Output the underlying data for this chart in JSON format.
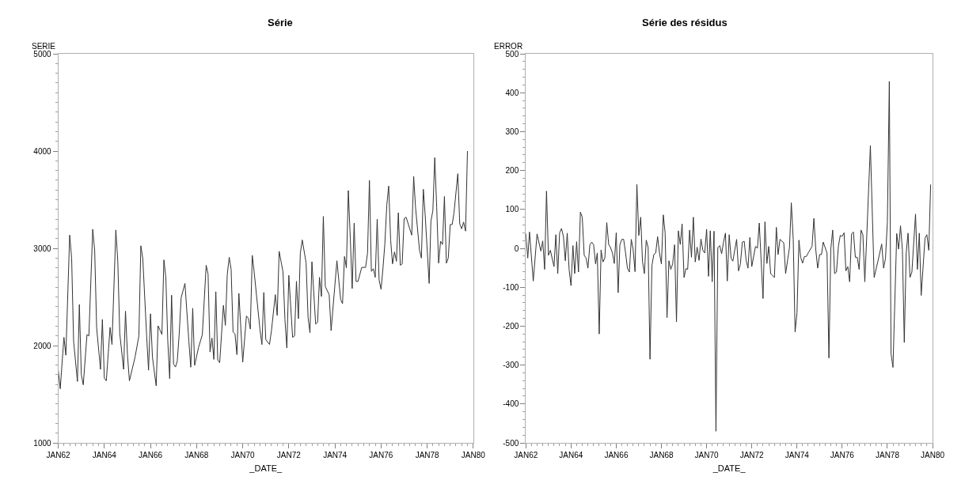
{
  "chart_data": [
    {
      "type": "line",
      "title": "Série",
      "xlabel": "_DATE_",
      "ylabel": "SERIE",
      "x": [
        "1962-01",
        "1962-02",
        "1962-04",
        "1962-05",
        "1962-07",
        "1962-08",
        "1962-09",
        "1962-11",
        "1962-12",
        "1963-01",
        "1963-02",
        "1963-04",
        "1963-05",
        "1963-07",
        "1963-08",
        "1963-09",
        "1963-11",
        "1963-12",
        "1964-01",
        "1964-02",
        "1964-04",
        "1964-05",
        "1964-07",
        "1964-08",
        "1964-09",
        "1964-11",
        "1964-12",
        "1965-01",
        "1965-02",
        "1965-05",
        "1965-07",
        "1965-08",
        "1965-09",
        "1965-11",
        "1965-12",
        "1966-01",
        "1966-02",
        "1966-04",
        "1966-05",
        "1966-07",
        "1966-08",
        "1966-09",
        "1966-10",
        "1966-11",
        "1966-12",
        "1967-01",
        "1967-02",
        "1967-03",
        "1967-04",
        "1967-05",
        "1967-07",
        "1967-09",
        "1967-10",
        "1967-11",
        "1967-12",
        "1968-02",
        "1968-04",
        "1968-06",
        "1968-07",
        "1968-08",
        "1968-09",
        "1968-10",
        "1968-11",
        "1968-12",
        "1969-01",
        "1969-03",
        "1969-04",
        "1969-05",
        "1969-06",
        "1969-07",
        "1969-08",
        "1969-09",
        "1969-10",
        "1969-11",
        "1970-01",
        "1970-03",
        "1970-04",
        "1970-05",
        "1970-06",
        "1970-07",
        "1970-10",
        "1970-11",
        "1970-12",
        "1971-01",
        "1971-03",
        "1971-04",
        "1971-06",
        "1971-07",
        "1971-08",
        "1971-10",
        "1971-11",
        "1971-12",
        "1972-01",
        "1972-03",
        "1972-04",
        "1972-05",
        "1972-06",
        "1972-07",
        "1972-08",
        "1972-10",
        "1972-11",
        "1972-12",
        "1973-01",
        "1973-03",
        "1973-04",
        "1973-05",
        "1973-06",
        "1973-07",
        "1973-08",
        "1973-10",
        "1973-11",
        "1974-02",
        "1974-04",
        "1974-05",
        "1974-06",
        "1974-07",
        "1974-08",
        "1974-09",
        "1974-10",
        "1974-11",
        "1974-12",
        "1975-01",
        "1975-03",
        "1975-05",
        "1975-06",
        "1975-07",
        "1975-08",
        "1975-09",
        "1975-10",
        "1975-11",
        "1975-12",
        "1976-01",
        "1976-02",
        "1976-03",
        "1976-04",
        "1976-05",
        "1976-06",
        "1976-07",
        "1976-08",
        "1976-09",
        "1976-10",
        "1976-11",
        "1976-12",
        "1977-01",
        "1977-02",
        "1977-05",
        "1977-06",
        "1977-07",
        "1977-09",
        "1977-10",
        "1977-11",
        "1977-12",
        "1978-02",
        "1978-03",
        "1978-04",
        "1978-05",
        "1978-06",
        "1978-07",
        "1978-08",
        "1978-09",
        "1978-10",
        "1978-11",
        "1978-12",
        "1979-01",
        "1979-02",
        "1979-03",
        "1979-05",
        "1979-06",
        "1979-07",
        "1979-08",
        "1979-09",
        "1979-10"
      ],
      "series": [
        {
          "color": "#333333",
          "values": [
            1747,
            1556,
            2085,
            1901,
            3136,
            2897,
            2044,
            1632,
            2422,
            1701,
            1597,
            2113,
            2100,
            3196,
            2977,
            2181,
            1756,
            2269,
            1665,
            1638,
            2187,
            2011,
            3188,
            2867,
            2126,
            1756,
            2354,
            1907,
            1638,
            1880,
            2099,
            3026,
            2894,
            2100,
            1747,
            2327,
            1880,
            1586,
            2203,
            2115,
            2881,
            2700,
            2060,
            1660,
            2518,
            1810,
            1780,
            1840,
            2120,
            2491,
            2639,
            2044,
            1778,
            2384,
            1797,
            1981,
            2113,
            2826,
            2735,
            1934,
            2077,
            1858,
            2554,
            1852,
            1825,
            2414,
            2208,
            2730,
            2908,
            2784,
            2140,
            2120,
            1907,
            2537,
            1830,
            2304,
            2280,
            2170,
            2928,
            2757,
            2167,
            2011,
            2546,
            2062,
            2012,
            2154,
            2524,
            2310,
            2969,
            2757,
            2263,
            1975,
            2722,
            2085,
            2100,
            2661,
            2277,
            2949,
            3086,
            2850,
            2291,
            2132,
            2862,
            2222,
            2240,
            2702,
            2505,
            3328,
            2606,
            2525,
            2154,
            2872,
            2475,
            2431,
            2916,
            2800,
            3594,
            3100,
            2587,
            3259,
            2660,
            2660,
            2804,
            2804,
            2950,
            3698,
            2763,
            2790,
            2702,
            3300,
            2675,
            2579,
            2798,
            3045,
            3443,
            3640,
            3086,
            2840,
            2963,
            2867,
            3366,
            2826,
            2840,
            3306,
            3320,
            3136,
            3739,
            3416,
            2982,
            2900,
            3607,
            3333,
            2639,
            3278,
            3388,
            3932,
            3416,
            2848,
            3072,
            3040,
            3533,
            2848,
            2900,
            3245,
            3245,
            3361,
            3767,
            3251,
            3201,
            3270,
            3177,
            4000
          ]
        }
      ],
      "xlim": [
        "1962-01",
        "1980-01"
      ],
      "xticks": [
        {
          "value": "1962-01",
          "label": "JAN62"
        },
        {
          "value": "1964-01",
          "label": "JAN64"
        },
        {
          "value": "1966-01",
          "label": "JAN66"
        },
        {
          "value": "1968-01",
          "label": "JAN68"
        },
        {
          "value": "1970-01",
          "label": "JAN70"
        },
        {
          "value": "1972-01",
          "label": "JAN72"
        },
        {
          "value": "1974-01",
          "label": "JAN74"
        },
        {
          "value": "1976-01",
          "label": "JAN76"
        },
        {
          "value": "1978-01",
          "label": "JAN78"
        },
        {
          "value": "1980-01",
          "label": "JAN80"
        }
      ],
      "ylim": [
        1000,
        5000
      ],
      "yticks": [
        1000,
        2000,
        3000,
        4000,
        5000
      ],
      "marker": "none",
      "line_style": "solid"
    },
    {
      "type": "line",
      "title": "Série des résidus",
      "xlabel": "_DATE_",
      "ylabel": "ERROR",
      "x": [
        "1962-01",
        "1962-02",
        "1962-03",
        "1962-05",
        "1962-07",
        "1962-09",
        "1962-10",
        "1962-11",
        "1962-12",
        "1963-01",
        "1963-02",
        "1963-04",
        "1963-05",
        "1963-06",
        "1963-07",
        "1963-08",
        "1963-09",
        "1963-10",
        "1963-11",
        "1963-12",
        "1964-01",
        "1964-02",
        "1964-03",
        "1964-04",
        "1964-05",
        "1964-06",
        "1964-07",
        "1964-08",
        "1964-09",
        "1964-10",
        "1964-11",
        "1964-12",
        "1965-01",
        "1965-02",
        "1965-03",
        "1965-04",
        "1965-05",
        "1965-06",
        "1965-07",
        "1965-08",
        "1965-09",
        "1965-10",
        "1965-11",
        "1965-12",
        "1966-01",
        "1966-02",
        "1966-03",
        "1966-04",
        "1966-05",
        "1966-06",
        "1966-07",
        "1966-08",
        "1966-09",
        "1966-10",
        "1966-11",
        "1966-12",
        "1967-01",
        "1967-02",
        "1967-03",
        "1967-04",
        "1967-05",
        "1967-06",
        "1967-07",
        "1967-08",
        "1967-09",
        "1967-10",
        "1967-11",
        "1967-12",
        "1968-01",
        "1968-02",
        "1968-03",
        "1968-04",
        "1968-05",
        "1968-06",
        "1968-07",
        "1968-08",
        "1968-09",
        "1968-10",
        "1968-11",
        "1968-12",
        "1969-01",
        "1969-02",
        "1969-03",
        "1969-04",
        "1969-05",
        "1969-06",
        "1969-07",
        "1969-08",
        "1969-09",
        "1969-10",
        "1969-11",
        "1969-12",
        "1970-01",
        "1970-02",
        "1970-03",
        "1970-04",
        "1970-05",
        "1970-06",
        "1970-07",
        "1970-08",
        "1970-09",
        "1970-10",
        "1970-11",
        "1970-12",
        "1971-01",
        "1971-02",
        "1971-03",
        "1971-05",
        "1971-06",
        "1971-07",
        "1971-08",
        "1971-09",
        "1971-10",
        "1971-11",
        "1971-12",
        "1972-01",
        "1972-03",
        "1972-04",
        "1972-05",
        "1972-07",
        "1972-08",
        "1972-09",
        "1972-10",
        "1972-11",
        "1973-01",
        "1973-02",
        "1973-03",
        "1973-04",
        "1973-06",
        "1973-07",
        "1973-09",
        "1973-10",
        "1973-11",
        "1973-12",
        "1974-01",
        "1974-02",
        "1974-03",
        "1974-04",
        "1974-05",
        "1974-06",
        "1974-07",
        "1974-09",
        "1974-10",
        "1974-11",
        "1974-12",
        "1975-01",
        "1975-02",
        "1975-03",
        "1975-05",
        "1975-06",
        "1975-07",
        "1975-08",
        "1975-09",
        "1975-10",
        "1975-11",
        "1975-12",
        "1976-01",
        "1976-02",
        "1976-03",
        "1976-04",
        "1976-05",
        "1976-06",
        "1976-07",
        "1976-08",
        "1976-09",
        "1976-10",
        "1976-11",
        "1976-12",
        "1977-01",
        "1977-02",
        "1977-04",
        "1977-06",
        "1977-08",
        "1977-10",
        "1977-11",
        "1977-12",
        "1978-01",
        "1978-02",
        "1978-03",
        "1978-04",
        "1978-06",
        "1978-07",
        "1978-08",
        "1978-09",
        "1978-10",
        "1978-11",
        "1978-12",
        "1979-01",
        "1979-02",
        "1979-04",
        "1979-05",
        "1979-06",
        "1979-07",
        "1979-09",
        "1979-10",
        "1979-11",
        "1979-12"
      ],
      "series": [
        {
          "color": "#333333",
          "values": [
            38,
            -25,
            42,
            -84,
            37,
            -7,
            19,
            -54,
            147,
            -18,
            -5,
            -47,
            35,
            -65,
            40,
            51,
            30,
            -32,
            39,
            -54,
            -96,
            7,
            -65,
            17,
            -61,
            93,
            80,
            -18,
            -25,
            -51,
            9,
            16,
            9,
            -40,
            -12,
            -220,
            -4,
            -35,
            -25,
            66,
            10,
            2,
            -12,
            -39,
            40,
            -114,
            9,
            23,
            23,
            -12,
            -51,
            -61,
            23,
            -2,
            -60,
            164,
            33,
            80,
            -33,
            -65,
            21,
            2,
            -285,
            -44,
            -16,
            -12,
            30,
            -12,
            -40,
            86,
            40,
            -178,
            -32,
            -54,
            -40,
            9,
            -189,
            45,
            10,
            63,
            -75,
            -52,
            -54,
            47,
            -23,
            80,
            -35,
            3,
            -31,
            24,
            -5,
            -12,
            49,
            -72,
            45,
            -86,
            44,
            -470,
            2,
            7,
            -14,
            16,
            39,
            -84,
            35,
            -26,
            -33,
            23,
            -58,
            -40,
            16,
            18,
            -30,
            -51,
            28,
            -47,
            5,
            0,
            65,
            -129,
            68,
            -39,
            5,
            -65,
            -75,
            54,
            -16,
            23,
            14,
            -65,
            2,
            117,
            23,
            -215,
            -166,
            21,
            -23,
            -38,
            -21,
            -21,
            -12,
            5,
            77,
            -4,
            -51,
            -16,
            -16,
            16,
            -12,
            -282,
            -2,
            47,
            -65,
            -61,
            5,
            33,
            31,
            40,
            -58,
            -47,
            -86,
            37,
            42,
            -23,
            -23,
            -54,
            47,
            35,
            -86,
            30,
            264,
            -75,
            -33,
            11,
            -51,
            -26,
            68,
            429,
            -271,
            -306,
            38,
            -2,
            58,
            -5,
            -242,
            -12,
            39,
            -75,
            -61,
            88,
            -54,
            39,
            -121,
            26,
            35,
            -5,
            164
          ]
        }
      ],
      "xlim": [
        "1962-01",
        "1980-01"
      ],
      "xticks": [
        {
          "value": "1962-01",
          "label": "JAN62"
        },
        {
          "value": "1964-01",
          "label": "JAN64"
        },
        {
          "value": "1966-01",
          "label": "JAN66"
        },
        {
          "value": "1968-01",
          "label": "JAN68"
        },
        {
          "value": "1970-01",
          "label": "JAN70"
        },
        {
          "value": "1972-01",
          "label": "JAN72"
        },
        {
          "value": "1974-01",
          "label": "JAN74"
        },
        {
          "value": "1976-01",
          "label": "JAN76"
        },
        {
          "value": "1978-01",
          "label": "JAN78"
        },
        {
          "value": "1980-01",
          "label": "JAN80"
        }
      ],
      "ylim": [
        -500,
        500
      ],
      "yticks": [
        -500,
        -400,
        -300,
        -200,
        -100,
        0,
        100,
        200,
        300,
        400,
        500
      ],
      "marker": "none",
      "line_style": "solid"
    }
  ]
}
